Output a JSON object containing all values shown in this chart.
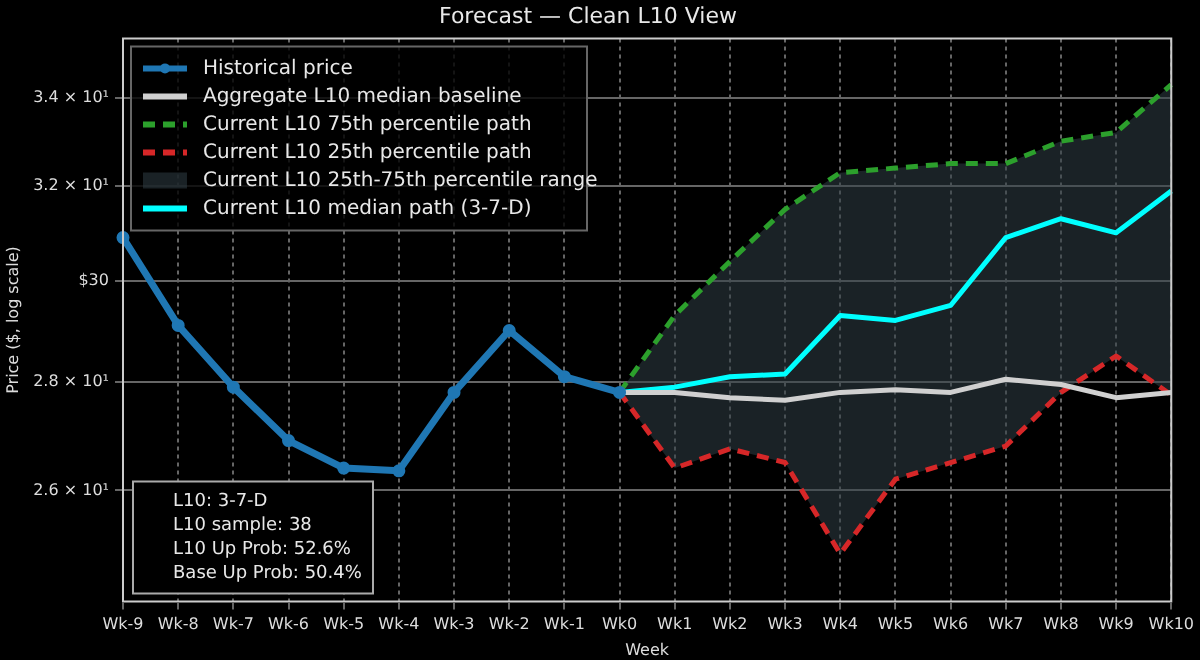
{
  "chart_data": {
    "type": "line",
    "title": "Forecast — Clean L10 View",
    "xlabel": "Week",
    "ylabel": "Price ($, log scale)",
    "categories": [
      "Wk-9",
      "Wk-8",
      "Wk-7",
      "Wk-6",
      "Wk-5",
      "Wk-4",
      "Wk-3",
      "Wk-2",
      "Wk-1",
      "Wk0",
      "Wk1",
      "Wk2",
      "Wk3",
      "Wk4",
      "Wk5",
      "Wk6",
      "Wk7",
      "Wk8",
      "Wk9",
      "Wk10"
    ],
    "series": [
      {
        "name": "Historical price",
        "color": "#1f77b4",
        "marker": "circle",
        "values": [
          30.9,
          29.1,
          27.9,
          26.9,
          26.4,
          26.35,
          27.8,
          29.0,
          28.1,
          27.8,
          null,
          null,
          null,
          null,
          null,
          null,
          null,
          null,
          null,
          null
        ]
      },
      {
        "name": "Aggregate L10 median baseline",
        "color": "#d0d0d0",
        "values": [
          null,
          null,
          null,
          null,
          null,
          null,
          null,
          null,
          null,
          27.8,
          27.8,
          27.7,
          27.65,
          27.8,
          27.85,
          27.8,
          28.05,
          27.95,
          27.7,
          27.8
        ]
      },
      {
        "name": "Current L10 75th percentile path",
        "color": "#2ca02c",
        "line_style": "dashed",
        "values": [
          null,
          null,
          null,
          null,
          null,
          null,
          null,
          null,
          null,
          27.8,
          29.3,
          30.4,
          31.5,
          32.3,
          32.4,
          32.5,
          32.5,
          33.0,
          33.2,
          34.3
        ]
      },
      {
        "name": "Current L10 25th percentile path",
        "color": "#d62728",
        "line_style": "dashed",
        "values": [
          null,
          null,
          null,
          null,
          null,
          null,
          null,
          null,
          null,
          27.8,
          26.4,
          26.75,
          26.5,
          24.9,
          26.2,
          26.5,
          26.8,
          27.8,
          28.5,
          27.75
        ]
      },
      {
        "name": "Current L10 median path (3-7-D)",
        "color": "#00ffff",
        "values": [
          null,
          null,
          null,
          null,
          null,
          null,
          null,
          null,
          null,
          27.8,
          27.9,
          28.1,
          28.15,
          29.3,
          29.2,
          29.5,
          30.9,
          31.3,
          31.0,
          31.9
        ],
        "lower": [
          null,
          null,
          null,
          null,
          null,
          null,
          null,
          null,
          null,
          27.8,
          26.4,
          26.75,
          26.5,
          24.9,
          26.2,
          26.5,
          26.8,
          27.8,
          28.5,
          27.75
        ],
        "upper": [
          null,
          null,
          null,
          null,
          null,
          null,
          null,
          null,
          null,
          27.8,
          29.3,
          30.4,
          31.5,
          32.3,
          32.4,
          32.5,
          32.5,
          33.0,
          33.2,
          34.3
        ]
      }
    ],
    "log": "y",
    "ylim": [
      24.1,
      35.4
    ],
    "yticks": [
      {
        "value": 26,
        "label": "2.6 × 10¹"
      },
      {
        "value": 28,
        "label": "2.8 × 10¹"
      },
      {
        "value": 30,
        "label": "$30"
      },
      {
        "value": 32,
        "label": "3.2 × 10¹"
      },
      {
        "value": 34,
        "label": "3.4 × 10¹"
      }
    ],
    "grid": true,
    "legend": "top left",
    "legend_title": "Current L10 25th-75th percentile range",
    "annotations": [
      "L10: 3-7-D",
      "L10 sample: 38",
      "L10 Up Prob: 52.6%",
      "Base Up Prob: 50.4%"
    ]
  }
}
